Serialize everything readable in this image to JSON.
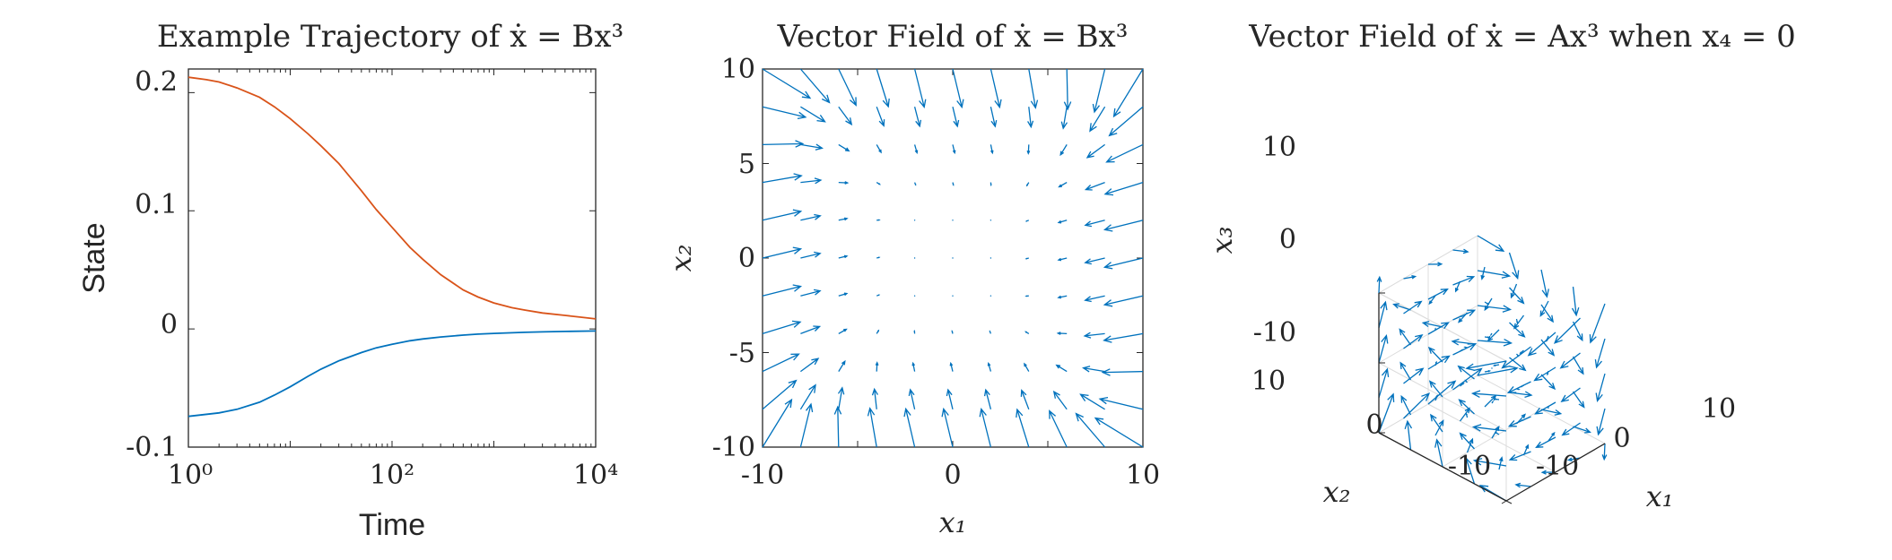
{
  "chart_data": [
    {
      "type": "line",
      "title": "Example Trajectory of ẋ = Bx³",
      "xlabel": "Time",
      "ylabel": "State",
      "xscale": "log",
      "xlim": [
        1,
        10000
      ],
      "ylim": [
        -0.1,
        0.22
      ],
      "xtick_labels": [
        "10⁰",
        "10²",
        "10⁴"
      ],
      "ytick_labels": [
        "0.2",
        "0.1",
        "0",
        "-0.1"
      ],
      "grid": false,
      "legend": "none",
      "series": [
        {
          "color": "#D95319",
          "x": [
            1,
            1.5,
            2,
            3,
            5,
            7,
            10,
            15,
            20,
            30,
            50,
            70,
            100,
            150,
            200,
            300,
            500,
            700,
            1000,
            1500,
            2000,
            3000,
            5000,
            7000,
            10000
          ],
          "y": [
            0.213,
            0.211,
            0.209,
            0.204,
            0.196,
            0.188,
            0.178,
            0.165,
            0.155,
            0.14,
            0.117,
            0.101,
            0.086,
            0.069,
            0.059,
            0.046,
            0.033,
            0.027,
            0.022,
            0.018,
            0.016,
            0.0135,
            0.0115,
            0.01,
            0.0085
          ]
        },
        {
          "color": "#0072BD",
          "x": [
            1,
            2,
            3,
            5,
            7,
            10,
            15,
            20,
            30,
            50,
            70,
            100,
            150,
            200,
            300,
            500,
            700,
            1000,
            2000,
            3000,
            5000,
            10000
          ],
          "y": [
            -0.074,
            -0.071,
            -0.068,
            -0.062,
            -0.056,
            -0.049,
            -0.04,
            -0.034,
            -0.027,
            -0.02,
            -0.016,
            -0.013,
            -0.01,
            -0.0085,
            -0.0068,
            -0.0052,
            -0.0044,
            -0.0038,
            -0.0029,
            -0.0025,
            -0.0021,
            -0.0017
          ]
        }
      ]
    },
    {
      "type": "quiver",
      "title": "Vector Field of ẋ = Bx³",
      "xlabel": "x₁",
      "ylabel": "x₂",
      "xlim": [
        -10,
        10
      ],
      "ylim": [
        -10,
        10
      ],
      "xtick_labels": [
        "-10",
        "0",
        "10"
      ],
      "ytick_labels": [
        "10",
        "5",
        "0",
        "-5",
        "-10"
      ],
      "grid_spacing": 2,
      "arrow_color": "#0072BD",
      "field": "u = -0.25·x₁³ + 0.06·x₂³, v = -0.06·x₁³ - 0.25·x₂³ (shape only)"
    },
    {
      "type": "quiver3d",
      "title": "Vector Field of ẋ = Ax³ when x₄ = 0",
      "xlabel": "x₁",
      "ylabel": "x₂",
      "zlabel": "x₃",
      "xlim": [
        -10,
        10
      ],
      "ylim": [
        -10,
        10
      ],
      "zlim": [
        -10,
        10
      ],
      "xtick_labels": [
        "-10",
        "0",
        "10"
      ],
      "ytick_labels": [
        "-10",
        "0",
        "10"
      ],
      "ztick_labels": [
        "10",
        "0",
        "-10"
      ],
      "grid": true,
      "arrow_color": "#0072BD"
    }
  ]
}
